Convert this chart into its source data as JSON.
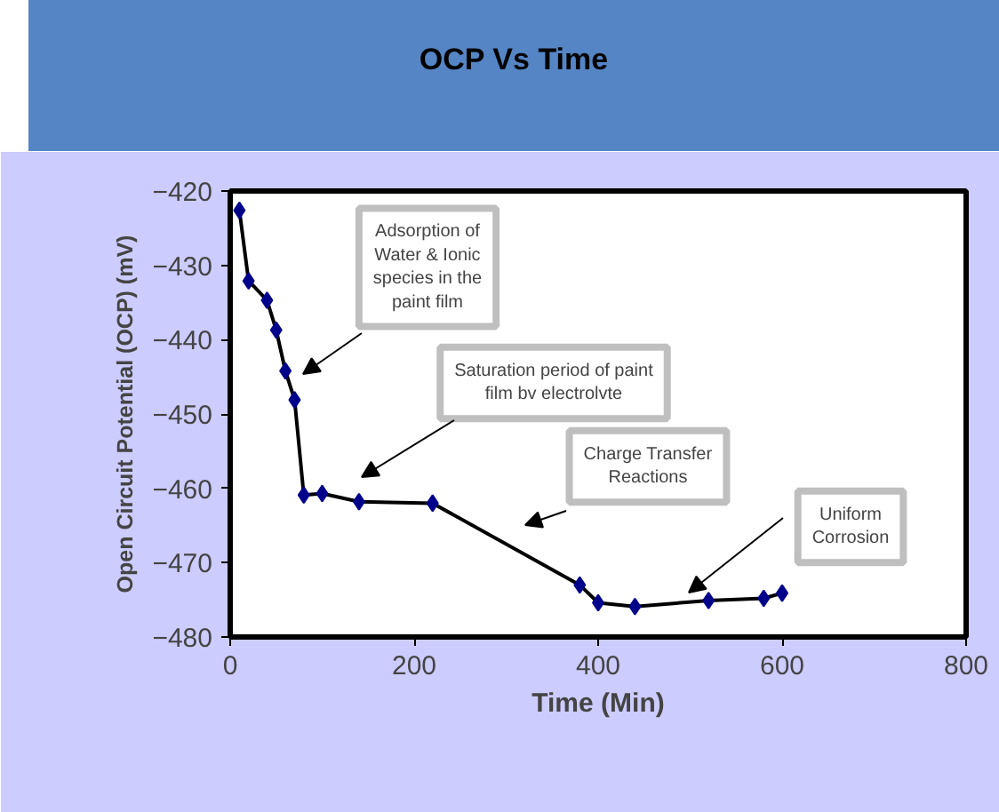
{
  "chart_data": {
    "type": "line",
    "title": "OCP Vs Time",
    "xlabel": "Time (Min)",
    "ylabel": "Open Circuit Potential (OCP) (mV)",
    "xlim": [
      0,
      800
    ],
    "ylim": [
      -480,
      -420
    ],
    "xticks": [
      0,
      200,
      400,
      600,
      800
    ],
    "yticks": [
      -480,
      -470,
      -460,
      -450,
      -440,
      -430,
      -420
    ],
    "grid": false,
    "marker": "diamond",
    "line_style": "solid",
    "series": [
      {
        "color": "#00008b",
        "x": [
          10,
          20,
          40,
          50,
          60,
          70,
          80,
          100,
          140,
          220,
          380,
          400,
          440,
          520,
          580,
          600
        ],
        "values": [
          -422.6,
          -432.1,
          -434.7,
          -438.7,
          -444.2,
          -448.1,
          -460.9,
          -460.7,
          -461.8,
          -462.0,
          -473.0,
          -475.4,
          -475.9,
          -475.1,
          -474.8,
          -474.1
        ]
      }
    ],
    "annotations": [
      "Adsorption of Water & Ionic species in the paint film",
      "Saturation period of paint film bv electrolvte",
      "Charge Transfer Reactions",
      "Uniform Corrosion"
    ]
  }
}
